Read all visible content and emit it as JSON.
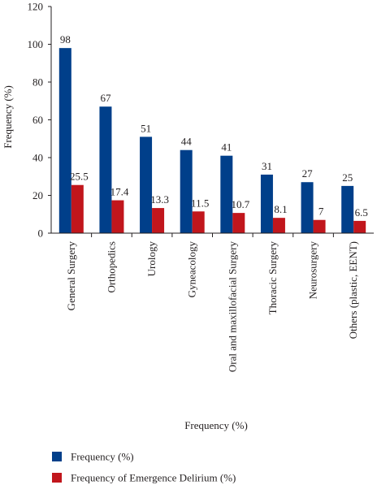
{
  "chart_data": {
    "type": "bar",
    "title": "",
    "xlabel": "Frequency (%)",
    "ylabel": "Frequency (%)",
    "ylim": [
      0,
      120
    ],
    "yticks": [
      0,
      20,
      40,
      60,
      80,
      100,
      120
    ],
    "grid": false,
    "legend_position": "bottom-left",
    "categories": [
      "General Surgery",
      "Orthopedics",
      "Urology",
      "Gyneacology",
      "Oral and maxillofacial Surgery",
      "Thoracic Surgery",
      "Neurosurgery",
      "Others (plastic, EENT)"
    ],
    "series": [
      {
        "name": "Frequency (%)",
        "color": "#003f8a",
        "values": [
          98,
          67,
          51,
          44,
          41,
          31,
          27,
          25
        ]
      },
      {
        "name": "Frequency of Emergence Delirium (%)",
        "color": "#c1161c",
        "values": [
          25.5,
          17.4,
          13.3,
          11.5,
          10.7,
          8.1,
          7,
          6.5
        ]
      }
    ]
  }
}
